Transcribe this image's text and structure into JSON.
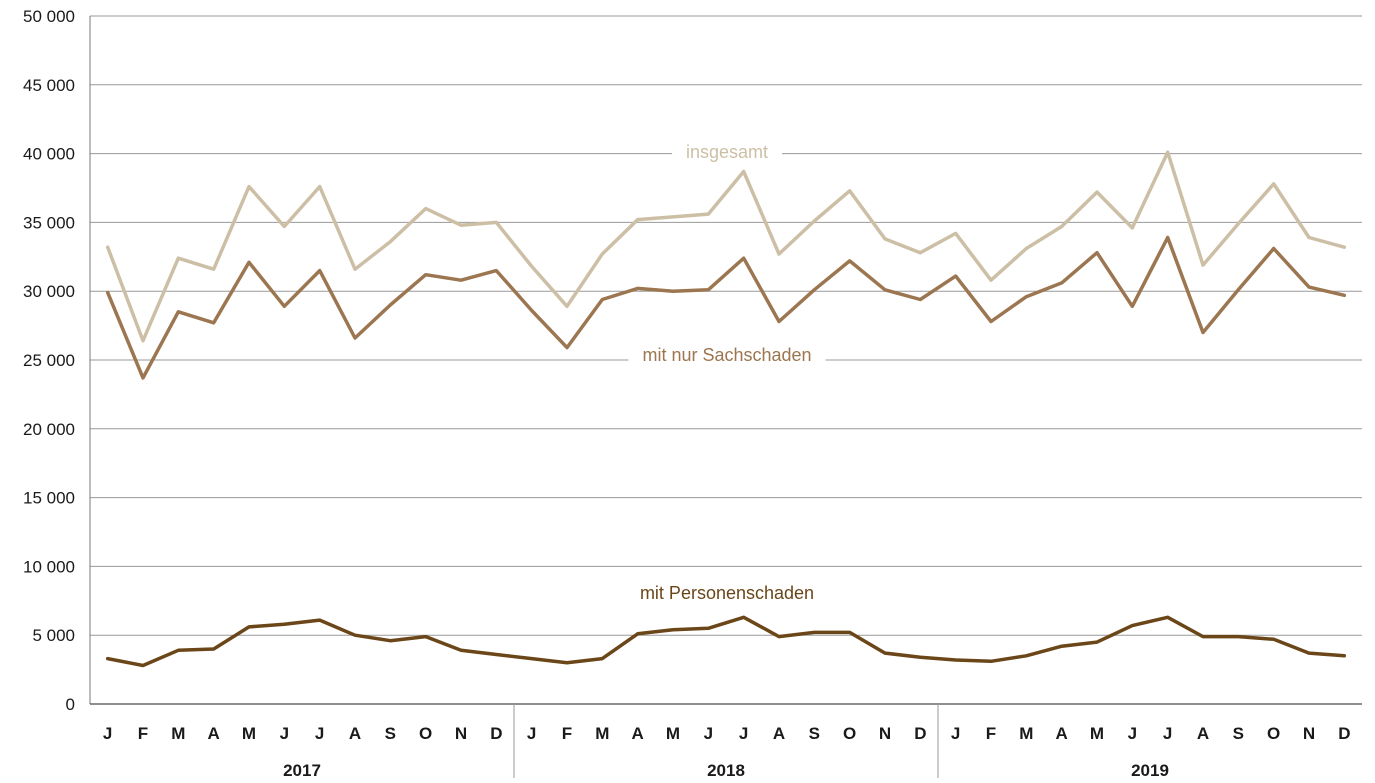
{
  "chart_data": {
    "type": "line",
    "title": "",
    "xlabel": "",
    "ylabel": "",
    "ylim": [
      0,
      50000
    ],
    "yticks": [
      0,
      5000,
      10000,
      15000,
      20000,
      25000,
      30000,
      35000,
      40000,
      45000,
      50000
    ],
    "ytick_labels": [
      "0",
      "5 000",
      "10 000",
      "15 000",
      "20 000",
      "25 000",
      "30 000",
      "35 000",
      "40 000",
      "45 000",
      "50 000"
    ],
    "grid": "horizontal",
    "categories": [
      "J",
      "F",
      "M",
      "A",
      "M",
      "J",
      "J",
      "A",
      "S",
      "O",
      "N",
      "D",
      "J",
      "F",
      "M",
      "A",
      "M",
      "J",
      "J",
      "A",
      "S",
      "O",
      "N",
      "D",
      "J",
      "F",
      "M",
      "A",
      "M",
      "J",
      "J",
      "A",
      "S",
      "O",
      "N",
      "D"
    ],
    "years": [
      "2017",
      "2018",
      "2019"
    ],
    "series": [
      {
        "name": "insgesamt",
        "color": "#cdbfa6",
        "values": [
          33200,
          26400,
          32400,
          31600,
          37600,
          34700,
          37600,
          31600,
          33600,
          36000,
          34800,
          35000,
          31800,
          28900,
          32700,
          35200,
          35400,
          35600,
          38700,
          32700,
          35100,
          37300,
          33800,
          32800,
          34200,
          30800,
          33100,
          34700,
          37200,
          34600,
          40100,
          31900,
          34900,
          37800,
          33900,
          33200
        ]
      },
      {
        "name": "mit nur Sachschaden",
        "color": "#9c7650",
        "values": [
          29900,
          23700,
          28500,
          27700,
          32100,
          28900,
          31500,
          26600,
          29000,
          31200,
          30800,
          31500,
          28600,
          25900,
          29400,
          30200,
          30000,
          30100,
          32400,
          27800,
          30100,
          32200,
          30100,
          29400,
          31100,
          27800,
          29600,
          30600,
          32800,
          28900,
          33900,
          27000,
          30100,
          33100,
          30300,
          29700
        ]
      },
      {
        "name": "mit Personenschaden",
        "color": "#6b4619",
        "values": [
          3300,
          2800,
          3900,
          4000,
          5600,
          5800,
          6100,
          5000,
          4600,
          4900,
          3900,
          3600,
          3300,
          3000,
          3300,
          5100,
          5400,
          5500,
          6300,
          4900,
          5200,
          5200,
          3700,
          3400,
          3200,
          3100,
          3500,
          4200,
          4500,
          5700,
          6300,
          4900,
          4900,
          4700,
          3700,
          3500
        ]
      }
    ]
  }
}
